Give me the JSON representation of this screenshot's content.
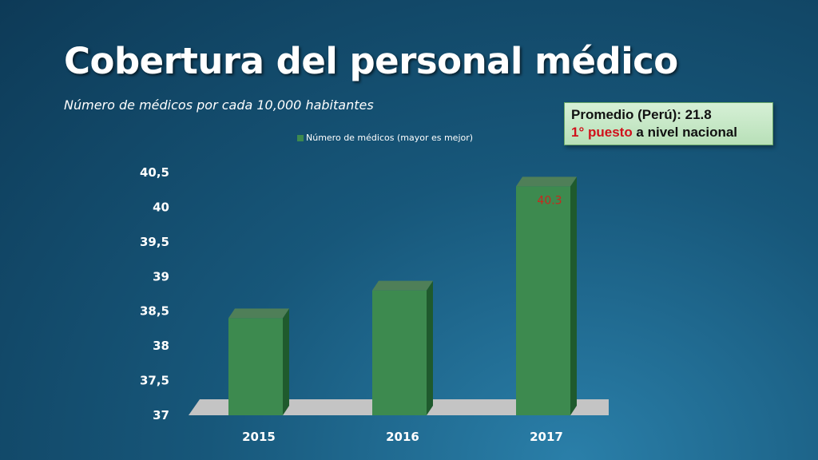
{
  "slide": {
    "title": "Cobertura del personal médico",
    "subtitle": "Número de médicos por cada 10,000 habitantes"
  },
  "callout": {
    "line1": "Promedio (Perú): 21.8",
    "line2_red": "1° puesto",
    "line2_rest": " a nivel nacional"
  },
  "colors": {
    "bar_front": "#3d8a4f",
    "bar_side": "#1f5a2d",
    "bar_top": "#4f7f58",
    "floor": "#c4c4c4",
    "data_label": "#c8281e"
  },
  "chart_data": {
    "type": "bar",
    "categories": [
      "2015",
      "2016",
      "2017"
    ],
    "series": [
      {
        "name": "Número de médicos (mayor es mejor)",
        "values": [
          38.4,
          38.8,
          40.3
        ]
      }
    ],
    "data_labels": [
      "",
      "",
      "40.3"
    ],
    "ylim": [
      37,
      40.5
    ],
    "yticks": [
      "37",
      "37,5",
      "38",
      "38,5",
      "39",
      "39,5",
      "40",
      "40,5"
    ],
    "legend_position": "top",
    "grid": false
  }
}
